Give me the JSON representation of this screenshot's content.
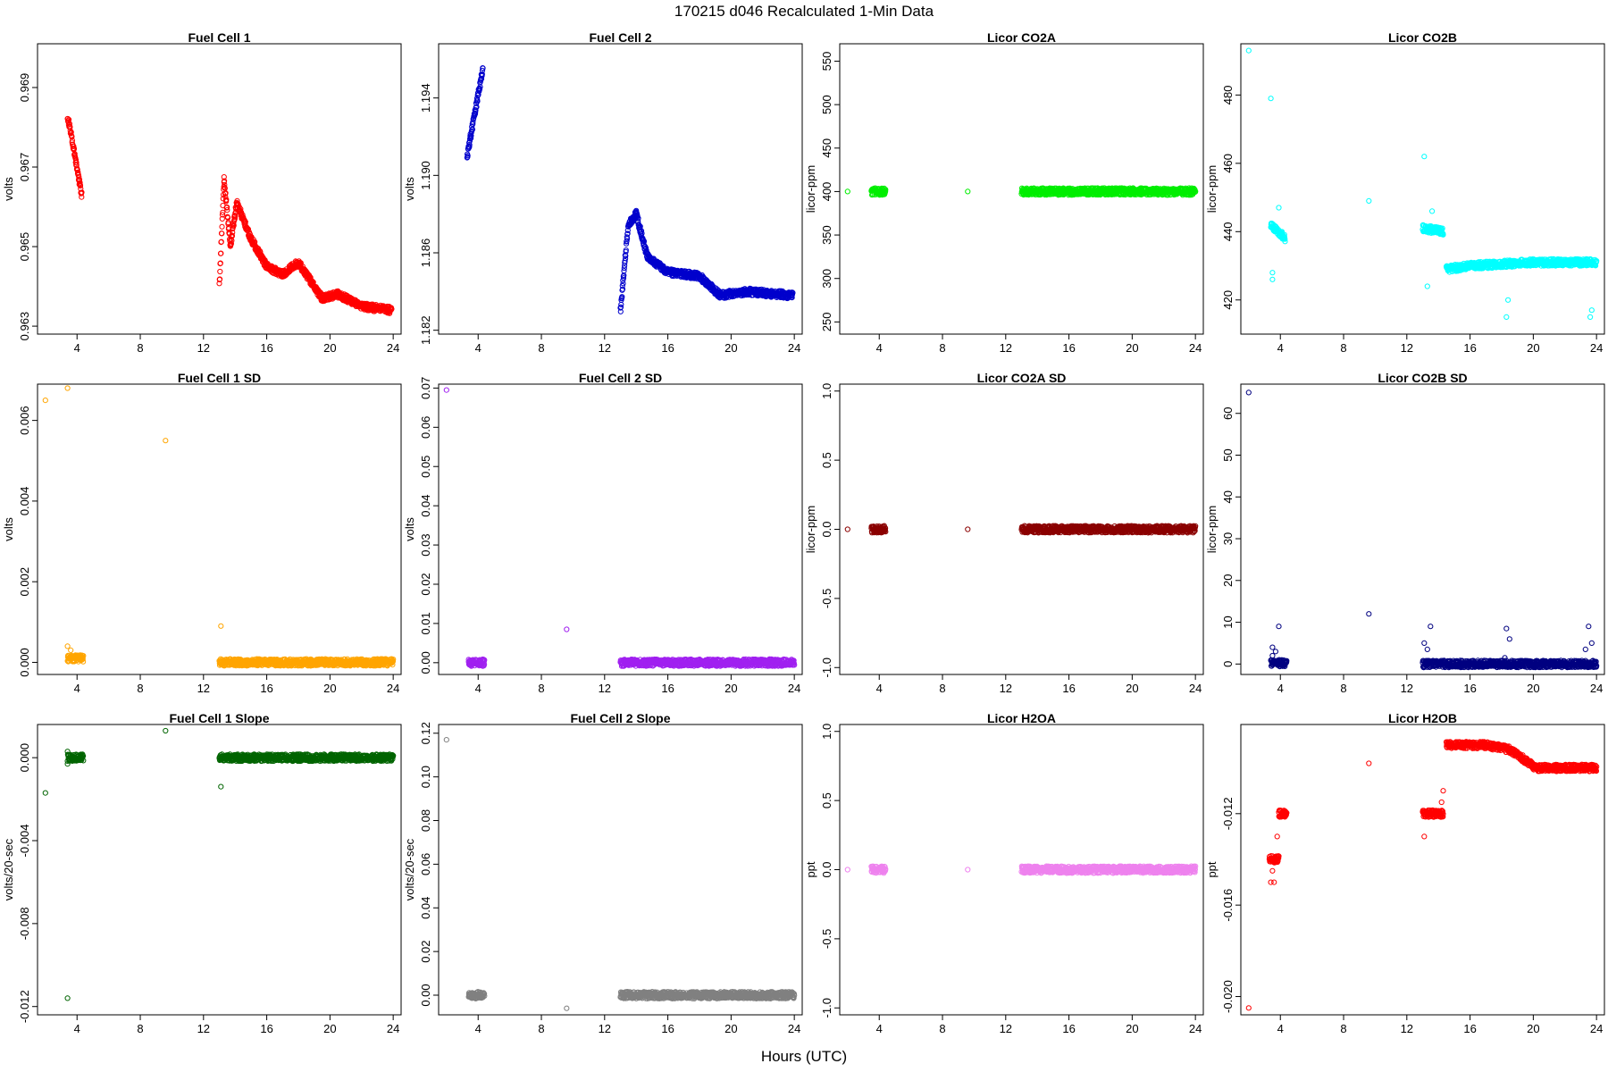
{
  "figure": {
    "title": "170215   d046   Recalculated 1-Min Data",
    "xlabel": "Hours (UTC)"
  },
  "chart_data": [
    {
      "type": "scatter",
      "title": "Fuel Cell 1",
      "ylabel": "volts",
      "color": "#ff0000",
      "xlim": [
        1.5,
        24.5
      ],
      "ylim": [
        0.9628,
        0.9701
      ],
      "xticks": [
        4,
        8,
        12,
        16,
        20,
        24
      ],
      "yticks": [
        0.963,
        0.965,
        0.967,
        0.969
      ],
      "ytick_labels": [
        "0.963",
        "0.965",
        "0.967",
        "0.969"
      ],
      "segments": [
        {
          "x": [
            3.4,
            4.3
          ],
          "y": [
            0.9683,
            0.9663
          ]
        },
        {
          "x": [
            13.0,
            13.3
          ],
          "y": [
            0.964,
            0.9667
          ]
        },
        {
          "x": [
            13.3,
            13.7
          ],
          "y": [
            0.9667,
            0.965
          ]
        },
        {
          "x": [
            13.7,
            14.1
          ],
          "y": [
            0.965,
            0.9661
          ]
        },
        {
          "x": [
            14.1,
            15.0
          ],
          "y": [
            0.9661,
            0.9652
          ]
        },
        {
          "x": [
            15.0,
            16.0
          ],
          "y": [
            0.9652,
            0.9645
          ]
        },
        {
          "x": [
            16.0,
            17.0
          ],
          "y": [
            0.9645,
            0.9643
          ]
        },
        {
          "x": [
            17.0,
            18.0
          ],
          "y": [
            0.9643,
            0.9646
          ]
        },
        {
          "x": [
            18.0,
            19.5
          ],
          "y": [
            0.9646,
            0.9637
          ]
        },
        {
          "x": [
            19.5,
            20.5
          ],
          "y": [
            0.9637,
            0.9638
          ]
        },
        {
          "x": [
            20.5,
            22.0
          ],
          "y": [
            0.9638,
            0.9635
          ]
        },
        {
          "x": [
            22.0,
            23.9
          ],
          "y": [
            0.9635,
            0.9634
          ]
        }
      ]
    },
    {
      "type": "scatter",
      "title": "Fuel Cell 2",
      "ylabel": "volts",
      "color": "#0000cc",
      "xlim": [
        1.5,
        24.5
      ],
      "ylim": [
        1.1818,
        1.1968
      ],
      "xticks": [
        4,
        8,
        12,
        16,
        20,
        24
      ],
      "yticks": [
        1.182,
        1.186,
        1.19,
        1.194
      ],
      "ytick_labels": [
        "1.182",
        "1.186",
        "1.190",
        "1.194"
      ],
      "segments": [
        {
          "x": [
            3.3,
            4.3
          ],
          "y": [
            1.191,
            1.1955
          ]
        },
        {
          "x": [
            13.0,
            13.5
          ],
          "y": [
            1.183,
            1.1875
          ]
        },
        {
          "x": [
            13.5,
            14.0
          ],
          "y": [
            1.1875,
            1.188
          ]
        },
        {
          "x": [
            14.0,
            14.7
          ],
          "y": [
            1.188,
            1.1858
          ]
        },
        {
          "x": [
            14.7,
            16.0
          ],
          "y": [
            1.1858,
            1.185
          ]
        },
        {
          "x": [
            16.0,
            18.0
          ],
          "y": [
            1.185,
            1.1848
          ]
        },
        {
          "x": [
            18.0,
            19.3
          ],
          "y": [
            1.1848,
            1.1838
          ]
        },
        {
          "x": [
            19.3,
            21.0
          ],
          "y": [
            1.1838,
            1.184
          ]
        },
        {
          "x": [
            21.0,
            23.9
          ],
          "y": [
            1.184,
            1.1838
          ]
        }
      ]
    },
    {
      "type": "scatter",
      "title": "Licor CO2A",
      "ylabel": "licor-ppm",
      "color": "#00ee00",
      "xlim": [
        1.5,
        24.5
      ],
      "ylim": [
        236,
        570
      ],
      "xticks": [
        4,
        8,
        12,
        16,
        20,
        24
      ],
      "yticks": [
        250,
        300,
        350,
        400,
        450,
        500,
        550
      ],
      "ytick_labels": [
        "250",
        "300",
        "350",
        "400",
        "450",
        "500",
        "550"
      ],
      "points": [
        {
          "x": 2.0,
          "y": 400
        },
        {
          "x": 9.6,
          "y": 400
        }
      ],
      "segments": [
        {
          "x": [
            3.5,
            4.4
          ],
          "y": [
            400,
            400
          ]
        },
        {
          "x": [
            13.0,
            24.0
          ],
          "y": [
            400,
            400
          ]
        }
      ]
    },
    {
      "type": "scatter",
      "title": "Licor CO2B",
      "ylabel": "licor-ppm",
      "color": "#00ffff",
      "xlim": [
        1.5,
        24.5
      ],
      "ylim": [
        410,
        495
      ],
      "xticks": [
        4,
        8,
        12,
        16,
        20,
        24
      ],
      "yticks": [
        420,
        440,
        460,
        480
      ],
      "ytick_labels": [
        "420",
        "440",
        "460",
        "480"
      ],
      "points": [
        {
          "x": 2.0,
          "y": 493
        },
        {
          "x": 3.4,
          "y": 479
        },
        {
          "x": 9.6,
          "y": 449
        },
        {
          "x": 13.1,
          "y": 462
        },
        {
          "x": 3.5,
          "y": 426
        },
        {
          "x": 3.5,
          "y": 428
        },
        {
          "x": 3.9,
          "y": 447
        },
        {
          "x": 4.1,
          "y": 440
        },
        {
          "x": 13.3,
          "y": 424
        },
        {
          "x": 13.6,
          "y": 446
        },
        {
          "x": 14.0,
          "y": 440
        },
        {
          "x": 18.3,
          "y": 415
        },
        {
          "x": 18.4,
          "y": 420
        },
        {
          "x": 23.6,
          "y": 415
        },
        {
          "x": 23.7,
          "y": 417
        }
      ],
      "segments": [
        {
          "x": [
            3.4,
            4.3
          ],
          "y": [
            442,
            438
          ]
        },
        {
          "x": [
            13.0,
            14.3
          ],
          "y": [
            441,
            440
          ]
        },
        {
          "x": [
            14.5,
            16.0
          ],
          "y": [
            429,
            430
          ]
        },
        {
          "x": [
            16.0,
            20.0
          ],
          "y": [
            430,
            431
          ]
        },
        {
          "x": [
            20.0,
            24.0
          ],
          "y": [
            431,
            431
          ]
        }
      ]
    },
    {
      "type": "scatter",
      "title": "Fuel Cell 1 SD",
      "ylabel": "volts",
      "color": "#ffa500",
      "xlim": [
        1.5,
        24.5
      ],
      "ylim": [
        -0.0003,
        0.0069
      ],
      "xticks": [
        4,
        8,
        12,
        16,
        20,
        24
      ],
      "yticks": [
        0.0,
        0.002,
        0.004,
        0.006
      ],
      "ytick_labels": [
        "0.000",
        "0.002",
        "0.004",
        "0.006"
      ],
      "points": [
        {
          "x": 2.0,
          "y": 0.0065
        },
        {
          "x": 3.4,
          "y": 0.0068
        },
        {
          "x": 9.6,
          "y": 0.0055
        },
        {
          "x": 13.1,
          "y": 0.0009
        },
        {
          "x": 3.4,
          "y": 0.0004
        },
        {
          "x": 3.6,
          "y": 0.0003
        }
      ],
      "segments": [
        {
          "x": [
            3.4,
            4.4
          ],
          "y": [
            0.0001,
            0.0001
          ]
        },
        {
          "x": [
            13.0,
            24.0
          ],
          "y": [
            0.0,
            0.0
          ]
        }
      ]
    },
    {
      "type": "scatter",
      "title": "Fuel Cell 2 SD",
      "ylabel": "volts",
      "color": "#a020f0",
      "xlim": [
        1.5,
        24.5
      ],
      "ylim": [
        -0.003,
        0.071
      ],
      "xticks": [
        4,
        8,
        12,
        16,
        20,
        24
      ],
      "yticks": [
        0.0,
        0.01,
        0.02,
        0.03,
        0.04,
        0.05,
        0.06,
        0.07
      ],
      "ytick_labels": [
        "0.00",
        "0.01",
        "0.02",
        "0.03",
        "0.04",
        "0.05",
        "0.06",
        "0.07"
      ],
      "points": [
        {
          "x": 2.0,
          "y": 0.0695
        },
        {
          "x": 9.6,
          "y": 0.0085
        },
        {
          "x": 3.4,
          "y": 0.0008
        }
      ],
      "segments": [
        {
          "x": [
            3.4,
            4.4
          ],
          "y": [
            0.0,
            0.0
          ]
        },
        {
          "x": [
            13.0,
            24.0
          ],
          "y": [
            0.0,
            0.0
          ]
        }
      ]
    },
    {
      "type": "scatter",
      "title": "Licor CO2A SD",
      "ylabel": "licor-ppm",
      "color": "#8b0000",
      "xlim": [
        1.5,
        24.5
      ],
      "ylim": [
        -1.05,
        1.05
      ],
      "xticks": [
        4,
        8,
        12,
        16,
        20,
        24
      ],
      "yticks": [
        -1.0,
        -0.5,
        0.0,
        0.5,
        1.0
      ],
      "ytick_labels": [
        "-1.0",
        "-0.5",
        "0.0",
        "0.5",
        "1.0"
      ],
      "points": [
        {
          "x": 2.0,
          "y": 0.0
        },
        {
          "x": 9.6,
          "y": 0.0
        }
      ],
      "segments": [
        {
          "x": [
            3.5,
            4.4
          ],
          "y": [
            0.0,
            0.0
          ]
        },
        {
          "x": [
            13.0,
            24.0
          ],
          "y": [
            0.0,
            0.0
          ]
        }
      ]
    },
    {
      "type": "scatter",
      "title": "Licor CO2B SD",
      "ylabel": "licor-ppm",
      "color": "#000080",
      "xlim": [
        1.5,
        24.5
      ],
      "ylim": [
        -2.5,
        67
      ],
      "xticks": [
        4,
        8,
        12,
        16,
        20,
        24
      ],
      "yticks": [
        0,
        10,
        20,
        30,
        40,
        50,
        60
      ],
      "ytick_labels": [
        "0",
        "10",
        "20",
        "30",
        "40",
        "50",
        "60"
      ],
      "points": [
        {
          "x": 2.0,
          "y": 65
        },
        {
          "x": 9.6,
          "y": 12
        },
        {
          "x": 3.9,
          "y": 9
        },
        {
          "x": 3.5,
          "y": 4
        },
        {
          "x": 3.7,
          "y": 3
        },
        {
          "x": 3.5,
          "y": 2
        },
        {
          "x": 13.1,
          "y": 5
        },
        {
          "x": 13.5,
          "y": 9
        },
        {
          "x": 13.3,
          "y": 3.5
        },
        {
          "x": 18.3,
          "y": 8.5
        },
        {
          "x": 18.5,
          "y": 6
        },
        {
          "x": 18.2,
          "y": 1.5
        },
        {
          "x": 23.5,
          "y": 9
        },
        {
          "x": 23.7,
          "y": 5
        },
        {
          "x": 23.3,
          "y": 3.5
        }
      ],
      "segments": [
        {
          "x": [
            3.4,
            4.4
          ],
          "y": [
            0.2,
            0.2
          ]
        },
        {
          "x": [
            13.0,
            24.0
          ],
          "y": [
            0.0,
            0.0
          ]
        }
      ]
    },
    {
      "type": "scatter",
      "title": "Fuel Cell 1 Slope",
      "ylabel": "volts/20-sec",
      "color": "#006400",
      "xlim": [
        1.5,
        24.5
      ],
      "ylim": [
        -0.0124,
        0.0016
      ],
      "xticks": [
        4,
        8,
        12,
        16,
        20,
        24
      ],
      "yticks": [
        -0.012,
        -0.008,
        -0.004,
        0.0
      ],
      "ytick_labels": [
        "-0.012",
        "-0.008",
        "-0.004",
        "0.000"
      ],
      "points": [
        {
          "x": 2.0,
          "y": -0.0017
        },
        {
          "x": 3.4,
          "y": -0.0116
        },
        {
          "x": 9.6,
          "y": 0.0013
        },
        {
          "x": 13.1,
          "y": -0.0014
        },
        {
          "x": 3.4,
          "y": 0.0003
        },
        {
          "x": 3.4,
          "y": -0.0003
        }
      ],
      "segments": [
        {
          "x": [
            3.4,
            4.4
          ],
          "y": [
            0.0,
            0.0
          ]
        },
        {
          "x": [
            13.0,
            24.0
          ],
          "y": [
            0.0,
            0.0
          ]
        }
      ]
    },
    {
      "type": "scatter",
      "title": "Fuel Cell 2 Slope",
      "ylabel": "volts/20-sec",
      "color": "#808080",
      "xlim": [
        1.5,
        24.5
      ],
      "ylim": [
        -0.009,
        0.124
      ],
      "xticks": [
        4,
        8,
        12,
        16,
        20,
        24
      ],
      "yticks": [
        0.0,
        0.02,
        0.04,
        0.06,
        0.08,
        0.1,
        0.12
      ],
      "ytick_labels": [
        "0.00",
        "0.02",
        "0.04",
        "0.06",
        "0.08",
        "0.10",
        "0.12"
      ],
      "points": [
        {
          "x": 2.0,
          "y": 0.117
        },
        {
          "x": 9.6,
          "y": -0.006
        }
      ],
      "segments": [
        {
          "x": [
            3.4,
            4.4
          ],
          "y": [
            0.0,
            0.0
          ]
        },
        {
          "x": [
            13.0,
            24.0
          ],
          "y": [
            0.0,
            0.0
          ]
        }
      ]
    },
    {
      "type": "scatter",
      "title": "Licor H2OA",
      "ylabel": "ppt",
      "color": "#ee82ee",
      "xlim": [
        1.5,
        24.5
      ],
      "ylim": [
        -1.05,
        1.05
      ],
      "xticks": [
        4,
        8,
        12,
        16,
        20,
        24
      ],
      "yticks": [
        -1.0,
        -0.5,
        0.0,
        0.5,
        1.0
      ],
      "ytick_labels": [
        "-1.0",
        "-0.5",
        "0.0",
        "0.5",
        "1.0"
      ],
      "points": [
        {
          "x": 2.0,
          "y": 0.0
        },
        {
          "x": 9.6,
          "y": 0.0
        }
      ],
      "segments": [
        {
          "x": [
            3.5,
            4.4
          ],
          "y": [
            0.0,
            0.0
          ]
        },
        {
          "x": [
            13.0,
            24.0
          ],
          "y": [
            0.0,
            0.0
          ]
        }
      ]
    },
    {
      "type": "scatter",
      "title": "Licor H2OB",
      "ylabel": "ppt",
      "color": "#ff0000",
      "xlim": [
        1.5,
        24.5
      ],
      "ylim": [
        -0.0208,
        -0.0081
      ],
      "xticks": [
        4,
        8,
        12,
        16,
        20,
        24
      ],
      "yticks": [
        -0.02,
        -0.016,
        -0.012
      ],
      "ytick_labels": [
        "-0.020",
        "-0.016",
        "-0.012"
      ],
      "points": [
        {
          "x": 2.0,
          "y": -0.0205
        },
        {
          "x": 9.6,
          "y": -0.0098
        },
        {
          "x": 13.1,
          "y": -0.013
        },
        {
          "x": 3.4,
          "y": -0.015
        },
        {
          "x": 3.5,
          "y": -0.0145
        },
        {
          "x": 3.6,
          "y": -0.014
        },
        {
          "x": 3.8,
          "y": -0.013
        },
        {
          "x": 3.6,
          "y": -0.015
        },
        {
          "x": 14.2,
          "y": -0.0115
        },
        {
          "x": 14.3,
          "y": -0.011
        }
      ],
      "segments": [
        {
          "x": [
            3.3,
            3.9
          ],
          "y": [
            -0.014,
            -0.014
          ]
        },
        {
          "x": [
            3.9,
            4.4
          ],
          "y": [
            -0.012,
            -0.012
          ]
        },
        {
          "x": [
            13.0,
            14.3
          ],
          "y": [
            -0.012,
            -0.012
          ]
        },
        {
          "x": [
            14.5,
            17.0
          ],
          "y": [
            -0.009,
            -0.009
          ]
        },
        {
          "x": [
            17.0,
            18.5
          ],
          "y": [
            -0.009,
            -0.0092
          ]
        },
        {
          "x": [
            18.5,
            20.0
          ],
          "y": [
            -0.0092,
            -0.0099
          ]
        },
        {
          "x": [
            20.0,
            24.0
          ],
          "y": [
            -0.01,
            -0.01
          ]
        }
      ]
    }
  ]
}
